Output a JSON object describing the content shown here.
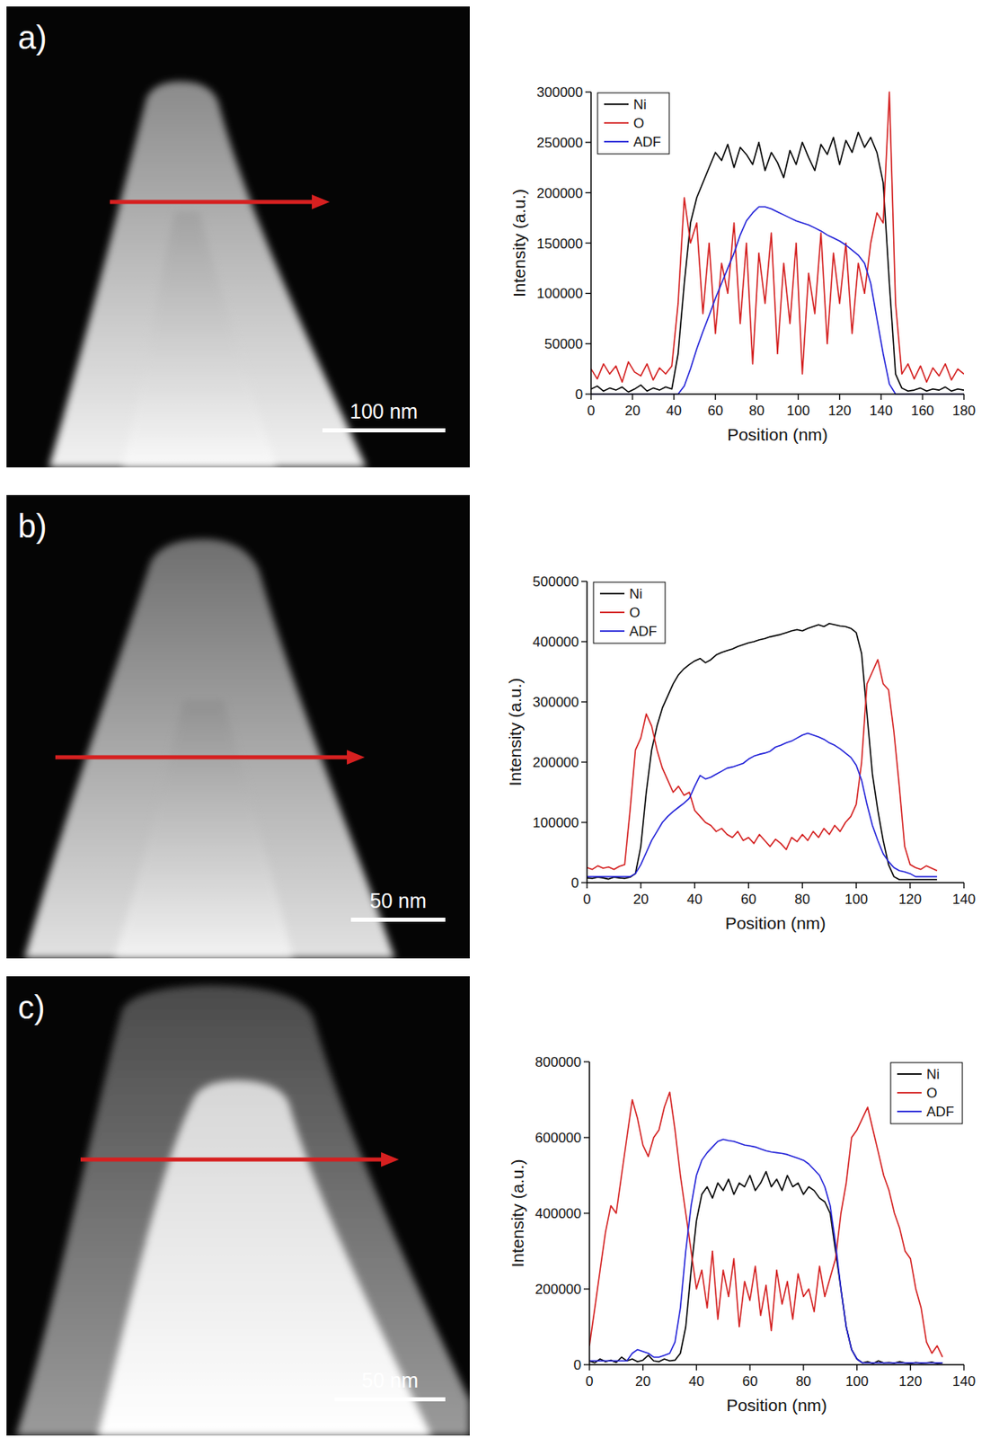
{
  "chart_data": [
    {
      "type": "line",
      "panel_label": "a)",
      "scale_bar": "100 nm",
      "x_label": "Position (nm)",
      "y_label": "Intensity (a.u.)",
      "xlim": [
        0,
        180
      ],
      "xticks": [
        0,
        20,
        40,
        60,
        80,
        100,
        120,
        140,
        160,
        180
      ],
      "ylim": [
        0,
        300000
      ],
      "yticks": [
        0,
        50000,
        100000,
        150000,
        200000,
        250000,
        300000
      ],
      "legend": "top-left",
      "x": [
        0,
        3,
        6,
        9,
        12,
        15,
        18,
        21,
        24,
        27,
        30,
        33,
        36,
        39,
        42,
        45,
        48,
        51,
        54,
        57,
        60,
        63,
        66,
        69,
        72,
        75,
        78,
        81,
        84,
        87,
        90,
        93,
        96,
        99,
        102,
        105,
        108,
        111,
        114,
        117,
        120,
        123,
        126,
        129,
        132,
        135,
        138,
        141,
        144,
        147,
        150,
        153,
        156,
        159,
        162,
        165,
        168,
        171,
        174,
        177,
        180
      ],
      "series": [
        {
          "name": "Ni",
          "color": "#000000",
          "values": [
            5000,
            8000,
            3000,
            6000,
            4000,
            7000,
            2000,
            5000,
            9000,
            3000,
            6000,
            4000,
            7000,
            5000,
            40000,
            110000,
            170000,
            195000,
            210000,
            225000,
            240000,
            232000,
            248000,
            225000,
            245000,
            238000,
            228000,
            250000,
            222000,
            240000,
            230000,
            215000,
            242000,
            228000,
            250000,
            235000,
            222000,
            248000,
            238000,
            255000,
            228000,
            252000,
            240000,
            260000,
            245000,
            255000,
            240000,
            210000,
            110000,
            20000,
            6000,
            3000,
            4000,
            6000,
            3000,
            5000,
            4000,
            7000,
            3000,
            5000,
            4000
          ]
        },
        {
          "name": "O",
          "color": "#d42020",
          "values": [
            25000,
            15000,
            30000,
            20000,
            28000,
            12000,
            32000,
            22000,
            18000,
            30000,
            14000,
            26000,
            20000,
            28000,
            90000,
            195000,
            150000,
            170000,
            80000,
            150000,
            60000,
            130000,
            100000,
            170000,
            70000,
            150000,
            30000,
            140000,
            90000,
            160000,
            40000,
            130000,
            70000,
            150000,
            20000,
            120000,
            80000,
            160000,
            50000,
            140000,
            90000,
            150000,
            60000,
            130000,
            100000,
            150000,
            180000,
            170000,
            300000,
            90000,
            20000,
            30000,
            15000,
            28000,
            12000,
            26000,
            18000,
            30000,
            14000,
            25000,
            20000
          ]
        },
        {
          "name": "ADF",
          "color": "#2323d8",
          "values": [
            0,
            0,
            0,
            0,
            0,
            0,
            0,
            0,
            0,
            0,
            0,
            0,
            0,
            0,
            0,
            8000,
            25000,
            45000,
            62000,
            78000,
            95000,
            110000,
            125000,
            140000,
            158000,
            172000,
            180000,
            186000,
            186000,
            184000,
            181000,
            178000,
            175000,
            172000,
            170000,
            168000,
            165000,
            162000,
            158000,
            155000,
            152000,
            148000,
            143000,
            138000,
            130000,
            110000,
            75000,
            40000,
            10000,
            0,
            0,
            0,
            0,
            0,
            0,
            0,
            0,
            0,
            0,
            0,
            0
          ]
        }
      ]
    },
    {
      "type": "line",
      "panel_label": "b)",
      "scale_bar": "50 nm",
      "x_label": "Position (nm)",
      "y_label": "Intensity (a.u.)",
      "xlim": [
        0,
        140
      ],
      "xticks": [
        0,
        20,
        40,
        60,
        80,
        100,
        120,
        140
      ],
      "ylim": [
        0,
        500000
      ],
      "yticks": [
        0,
        100000,
        200000,
        300000,
        400000,
        500000
      ],
      "legend": "top-left",
      "x": [
        0,
        2,
        4,
        6,
        8,
        10,
        12,
        14,
        16,
        18,
        20,
        22,
        24,
        26,
        28,
        30,
        32,
        34,
        36,
        38,
        40,
        42,
        44,
        46,
        48,
        50,
        52,
        54,
        56,
        58,
        60,
        62,
        64,
        66,
        68,
        70,
        72,
        74,
        76,
        78,
        80,
        82,
        84,
        86,
        88,
        90,
        92,
        94,
        96,
        98,
        100,
        102,
        104,
        106,
        108,
        110,
        112,
        114,
        116,
        118,
        120,
        122,
        124,
        126,
        128,
        130
      ],
      "series": [
        {
          "name": "Ni",
          "color": "#000000",
          "values": [
            8000,
            7000,
            9000,
            8000,
            6000,
            9000,
            8000,
            7000,
            9000,
            15000,
            60000,
            150000,
            220000,
            260000,
            290000,
            310000,
            330000,
            345000,
            355000,
            362000,
            368000,
            372000,
            365000,
            370000,
            378000,
            382000,
            385000,
            388000,
            392000,
            395000,
            398000,
            400000,
            403000,
            405000,
            408000,
            410000,
            412000,
            415000,
            418000,
            420000,
            418000,
            422000,
            425000,
            428000,
            425000,
            430000,
            428000,
            426000,
            425000,
            422000,
            415000,
            380000,
            280000,
            180000,
            120000,
            70000,
            30000,
            10000,
            5000,
            5000,
            5000,
            5000,
            5000,
            5000,
            5000,
            5000
          ]
        },
        {
          "name": "O",
          "color": "#d42020",
          "values": [
            25000,
            22000,
            28000,
            24000,
            26000,
            22000,
            27000,
            30000,
            120000,
            220000,
            240000,
            280000,
            260000,
            220000,
            190000,
            170000,
            150000,
            160000,
            145000,
            150000,
            120000,
            110000,
            100000,
            95000,
            85000,
            90000,
            80000,
            75000,
            85000,
            70000,
            75000,
            65000,
            80000,
            70000,
            60000,
            72000,
            65000,
            55000,
            75000,
            68000,
            80000,
            70000,
            85000,
            75000,
            90000,
            80000,
            95000,
            85000,
            100000,
            110000,
            130000,
            200000,
            330000,
            350000,
            370000,
            330000,
            320000,
            250000,
            160000,
            60000,
            30000,
            25000,
            22000,
            28000,
            24000,
            20000
          ]
        },
        {
          "name": "ADF",
          "color": "#2323d8",
          "values": [
            10000,
            10000,
            10000,
            10000,
            10000,
            10000,
            10000,
            10000,
            10000,
            15000,
            30000,
            50000,
            70000,
            85000,
            100000,
            110000,
            118000,
            125000,
            132000,
            140000,
            160000,
            178000,
            172000,
            175000,
            180000,
            185000,
            190000,
            192000,
            195000,
            198000,
            205000,
            210000,
            213000,
            215000,
            218000,
            225000,
            228000,
            232000,
            235000,
            240000,
            245000,
            248000,
            245000,
            242000,
            238000,
            232000,
            228000,
            222000,
            215000,
            208000,
            195000,
            170000,
            130000,
            95000,
            70000,
            48000,
            35000,
            25000,
            20000,
            18000,
            15000,
            10000,
            10000,
            10000,
            10000,
            10000
          ]
        }
      ]
    },
    {
      "type": "line",
      "panel_label": "c)",
      "scale_bar": "50 nm",
      "x_label": "Position (nm)",
      "y_label": "Intensity (a.u.)",
      "xlim": [
        0,
        140
      ],
      "xticks": [
        0,
        20,
        40,
        60,
        80,
        100,
        120,
        140
      ],
      "ylim": [
        0,
        800000
      ],
      "yticks": [
        0,
        200000,
        400000,
        600000,
        800000
      ],
      "legend": "top-right",
      "x": [
        0,
        2,
        4,
        6,
        8,
        10,
        12,
        14,
        16,
        18,
        20,
        22,
        24,
        26,
        28,
        30,
        32,
        34,
        36,
        38,
        40,
        42,
        44,
        46,
        48,
        50,
        52,
        54,
        56,
        58,
        60,
        62,
        64,
        66,
        68,
        70,
        72,
        74,
        76,
        78,
        80,
        82,
        84,
        86,
        88,
        90,
        92,
        94,
        96,
        98,
        100,
        102,
        104,
        106,
        108,
        110,
        112,
        114,
        116,
        118,
        120,
        122,
        124,
        126,
        128,
        130,
        132
      ],
      "series": [
        {
          "name": "Ni",
          "color": "#000000",
          "values": [
            10000,
            5000,
            15000,
            8000,
            12000,
            6000,
            20000,
            10000,
            15000,
            8000,
            12000,
            25000,
            10000,
            8000,
            15000,
            10000,
            12000,
            30000,
            100000,
            250000,
            380000,
            450000,
            470000,
            440000,
            480000,
            460000,
            490000,
            450000,
            480000,
            470000,
            500000,
            460000,
            480000,
            510000,
            470000,
            490000,
            460000,
            500000,
            470000,
            480000,
            450000,
            470000,
            460000,
            440000,
            430000,
            400000,
            300000,
            200000,
            100000,
            40000,
            15000,
            5000,
            8000,
            3000,
            10000,
            5000,
            6000,
            4000,
            8000,
            5000,
            3000,
            6000,
            4000,
            5000,
            7000,
            3000,
            5000
          ]
        },
        {
          "name": "O",
          "color": "#d42020",
          "values": [
            50000,
            150000,
            250000,
            350000,
            420000,
            400000,
            500000,
            600000,
            700000,
            650000,
            580000,
            550000,
            600000,
            620000,
            680000,
            720000,
            620000,
            500000,
            400000,
            300000,
            200000,
            250000,
            150000,
            300000,
            120000,
            250000,
            180000,
            280000,
            100000,
            220000,
            170000,
            260000,
            130000,
            210000,
            90000,
            250000,
            160000,
            220000,
            120000,
            240000,
            180000,
            200000,
            140000,
            260000,
            180000,
            230000,
            280000,
            400000,
            480000,
            600000,
            620000,
            650000,
            680000,
            620000,
            560000,
            500000,
            460000,
            400000,
            360000,
            300000,
            280000,
            200000,
            150000,
            60000,
            30000,
            50000,
            20000
          ]
        },
        {
          "name": "ADF",
          "color": "#2323d8",
          "values": [
            10000,
            10000,
            10000,
            10000,
            10000,
            10000,
            10000,
            10000,
            30000,
            40000,
            35000,
            30000,
            20000,
            20000,
            25000,
            30000,
            60000,
            150000,
            300000,
            420000,
            500000,
            540000,
            560000,
            575000,
            590000,
            595000,
            592000,
            590000,
            585000,
            580000,
            578000,
            575000,
            570000,
            565000,
            562000,
            560000,
            558000,
            555000,
            550000,
            545000,
            540000,
            530000,
            515000,
            500000,
            470000,
            420000,
            320000,
            200000,
            100000,
            40000,
            15000,
            5000,
            5000,
            5000,
            5000,
            5000,
            5000,
            5000,
            5000,
            5000,
            5000,
            5000,
            5000,
            5000,
            5000,
            5000,
            5000
          ]
        }
      ]
    }
  ]
}
